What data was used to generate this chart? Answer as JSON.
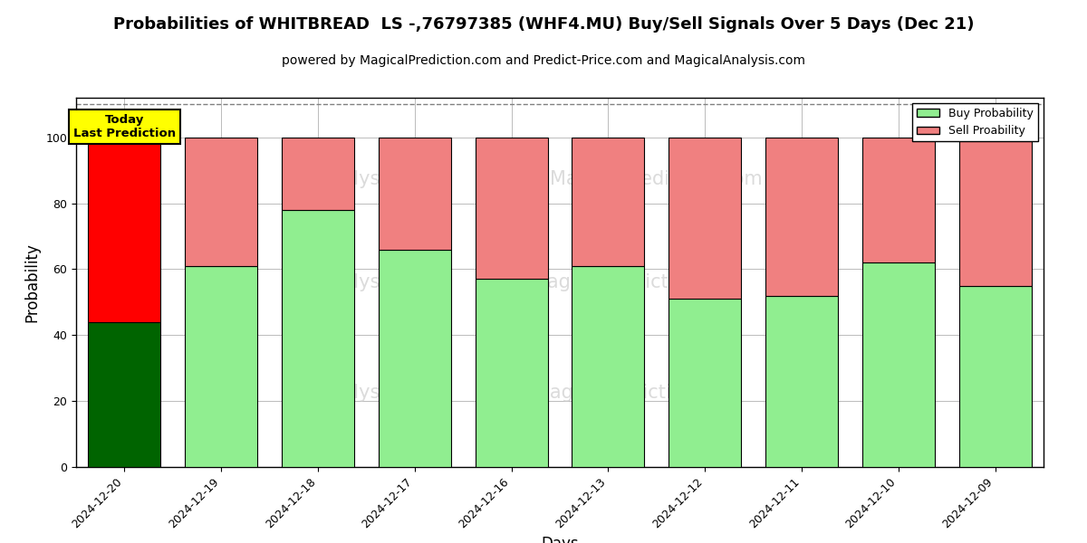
{
  "title": "Probabilities of WHITBREAD  LS -,76797385 (WHF4.MU) Buy/Sell Signals Over 5 Days (Dec 21)",
  "subtitle": "powered by MagicalPrediction.com and Predict-Price.com and MagicalAnalysis.com",
  "xlabel": "Days",
  "ylabel": "Probability",
  "dates": [
    "2024-12-20",
    "2024-12-19",
    "2024-12-18",
    "2024-12-17",
    "2024-12-16",
    "2024-12-13",
    "2024-12-12",
    "2024-12-11",
    "2024-12-10",
    "2024-12-09"
  ],
  "buy_values": [
    44,
    61,
    78,
    66,
    57,
    61,
    51,
    52,
    62,
    55
  ],
  "sell_values": [
    56,
    39,
    22,
    34,
    43,
    39,
    49,
    48,
    38,
    45
  ],
  "today_buy_color": "#006400",
  "today_sell_color": "#ff0000",
  "normal_buy_color": "#90EE90",
  "normal_sell_color": "#F08080",
  "today_label_bg": "#ffff00",
  "today_label_text": "Today\nLast Prediction",
  "legend_buy_label": "Buy Probability",
  "legend_sell_label": "Sell Proability",
  "ylim": [
    0,
    112
  ],
  "dashed_line_y": 110,
  "bar_edge_color": "#000000",
  "bar_width": 0.75,
  "grid_color": "#bbbbbb",
  "title_fontsize": 13,
  "subtitle_fontsize": 10,
  "axis_label_fontsize": 12,
  "tick_fontsize": 9,
  "watermark1": "MagicalAnalysis.com",
  "watermark2": "MagicalPrediction.com",
  "wm_bottom": "MagicalPrediction.com",
  "wm_bottom2": "calAnalysis.com"
}
